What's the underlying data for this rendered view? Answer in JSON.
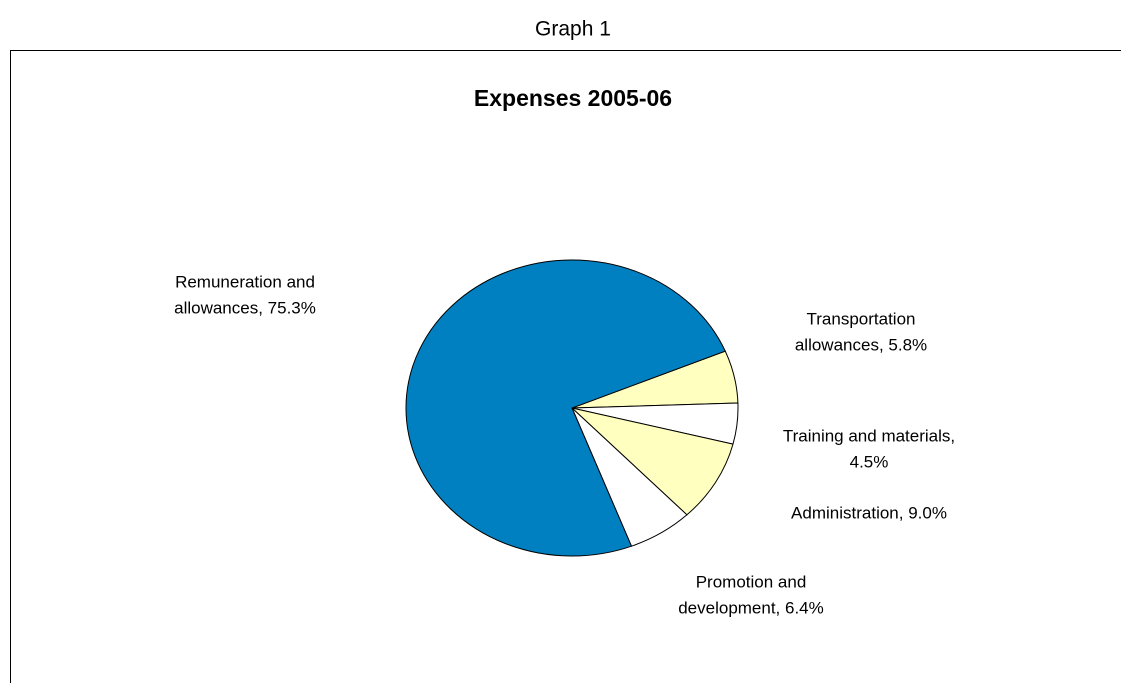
{
  "chart_data": {
    "type": "pie",
    "heading": "Graph 1",
    "title": "Expenses 2005-06",
    "categories": [
      "Transportation allowances",
      "Training and materials",
      "Administration",
      "Promotion and development",
      "Remuneration and allowances"
    ],
    "values": [
      5.8,
      4.5,
      9.0,
      6.4,
      75.3
    ],
    "labels": [
      [
        "Transportation",
        "allowances, 5.8%"
      ],
      [
        "Training and materials,",
        "4.5%"
      ],
      [
        "Administration, 9.0%"
      ],
      [
        "Promotion and",
        "development, 6.4%"
      ],
      [
        "Remuneration and",
        "allowances, 75.3%"
      ]
    ],
    "colors": [
      "#ffffc0",
      "#ffffff",
      "#ffffc0",
      "#ffffff",
      "#0080c0"
    ]
  }
}
